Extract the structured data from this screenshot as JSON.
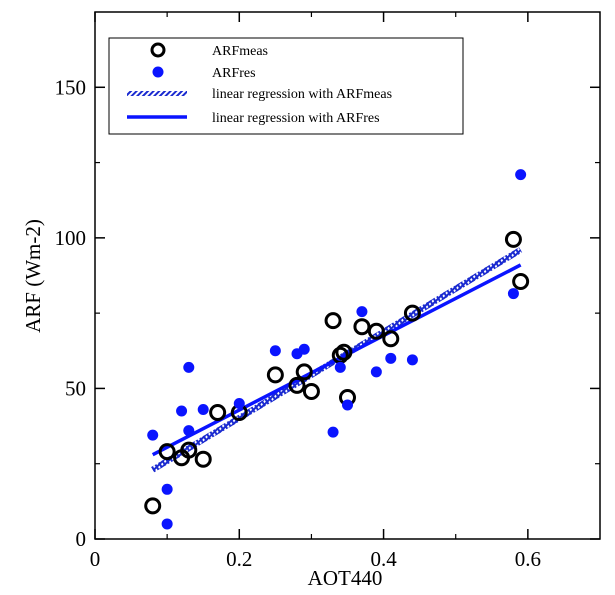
{
  "chart_data": {
    "type": "scatter",
    "title": "",
    "xlabel": "AOT440",
    "ylabel": "ARF (Wm-2)",
    "xlim": [
      0,
      0.7
    ],
    "ylim": [
      0,
      175
    ],
    "xticks": [
      0,
      0.2,
      0.4,
      0.6
    ],
    "xtick_labels": [
      "0",
      "0.2",
      "0.4",
      "0.6"
    ],
    "yticks": [
      0,
      50,
      100,
      150
    ],
    "ytick_labels": [
      "0",
      "50",
      "100",
      "150"
    ],
    "grid": false,
    "legend_position": "top-left",
    "series": [
      {
        "name": "ARFmeas",
        "kind": "scatter",
        "marker": "open-circle",
        "color": "#000000",
        "points": [
          [
            0.08,
            11
          ],
          [
            0.1,
            29
          ],
          [
            0.12,
            27
          ],
          [
            0.13,
            29.5
          ],
          [
            0.15,
            26.5
          ],
          [
            0.17,
            42
          ],
          [
            0.2,
            42
          ],
          [
            0.25,
            54.5
          ],
          [
            0.28,
            51
          ],
          [
            0.29,
            55.5
          ],
          [
            0.3,
            49
          ],
          [
            0.33,
            72.5
          ],
          [
            0.34,
            61
          ],
          [
            0.345,
            62
          ],
          [
            0.35,
            47
          ],
          [
            0.37,
            70.5
          ],
          [
            0.39,
            69
          ],
          [
            0.41,
            66.5
          ],
          [
            0.44,
            75
          ],
          [
            0.58,
            99.5
          ],
          [
            0.59,
            85.5
          ]
        ]
      },
      {
        "name": "ARFres",
        "kind": "scatter",
        "marker": "filled-circle",
        "color": "#0a14ff",
        "points": [
          [
            0.08,
            34.5
          ],
          [
            0.1,
            16.5
          ],
          [
            0.1,
            5
          ],
          [
            0.12,
            42.5
          ],
          [
            0.13,
            57
          ],
          [
            0.13,
            36
          ],
          [
            0.15,
            43
          ],
          [
            0.2,
            45
          ],
          [
            0.25,
            62.5
          ],
          [
            0.28,
            61.5
          ],
          [
            0.29,
            63
          ],
          [
            0.33,
            35.5
          ],
          [
            0.34,
            57
          ],
          [
            0.35,
            44.5
          ],
          [
            0.37,
            75.5
          ],
          [
            0.39,
            55.5
          ],
          [
            0.41,
            60
          ],
          [
            0.44,
            59.5
          ],
          [
            0.58,
            81.5
          ],
          [
            0.59,
            121
          ]
        ]
      },
      {
        "name": "linear regression with ARFmeas",
        "kind": "line",
        "style": "hatched",
        "color": "#1a2ad0",
        "x": [
          0.08,
          0.59
        ],
        "y": [
          23,
          96
        ]
      },
      {
        "name": "linear regression with ARFres",
        "kind": "line",
        "style": "solid",
        "color": "#0a14ff",
        "x": [
          0.08,
          0.59
        ],
        "y": [
          28,
          91
        ]
      }
    ]
  }
}
